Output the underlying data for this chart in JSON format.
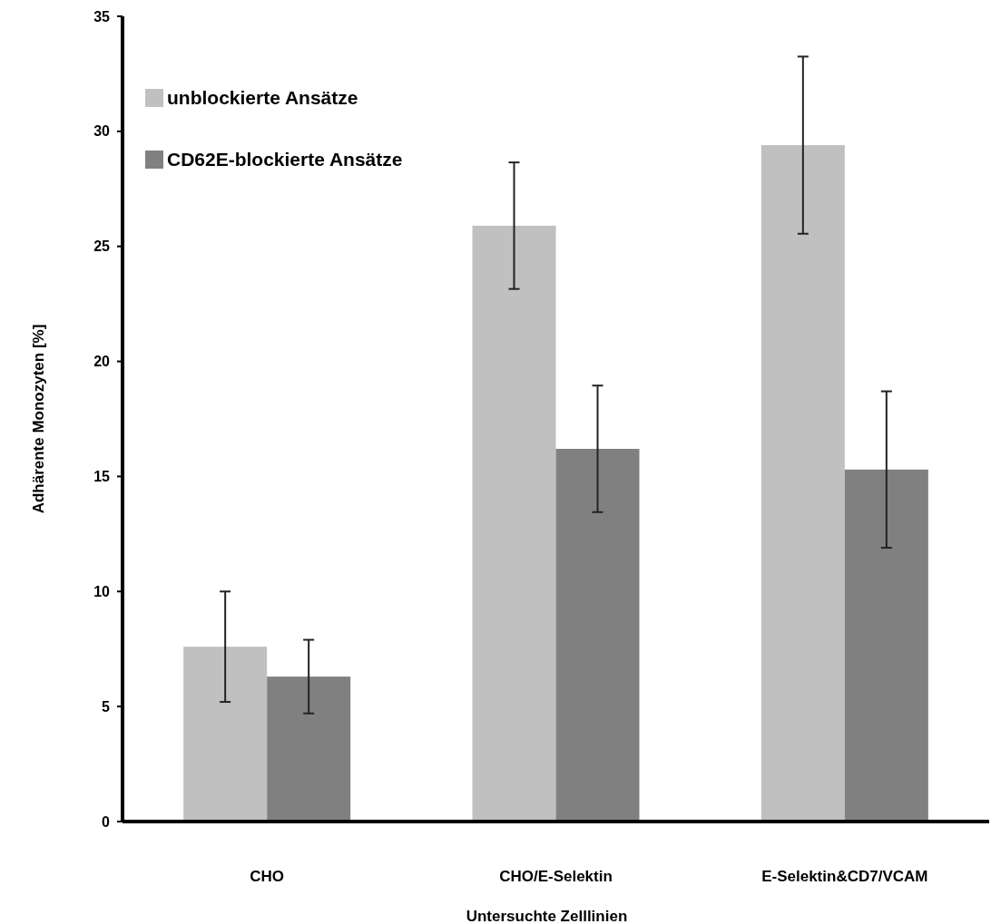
{
  "chart_data": {
    "type": "bar",
    "xlabel": "Untersuchte Zelllinien",
    "ylabel": "Adhärente Monozyten [%]",
    "categories": [
      "CHO",
      "CHO/E-Selektin",
      "E-Selektin&CD7/VCAM"
    ],
    "series": [
      {
        "name": "unblockierte Ansätze",
        "color": "#c0c0c0",
        "values": [
          7.6,
          25.9,
          29.4
        ],
        "errors": [
          2.4,
          2.75,
          3.85
        ]
      },
      {
        "name": "CD62E-blockierte Ansätze",
        "color": "#808080",
        "values": [
          6.3,
          16.2,
          15.3
        ],
        "errors": [
          1.6,
          2.75,
          3.4
        ]
      }
    ],
    "ylim": [
      0,
      35
    ],
    "yticks": [
      0,
      5,
      10,
      15,
      20,
      25,
      30,
      35
    ],
    "legend": "top left"
  }
}
